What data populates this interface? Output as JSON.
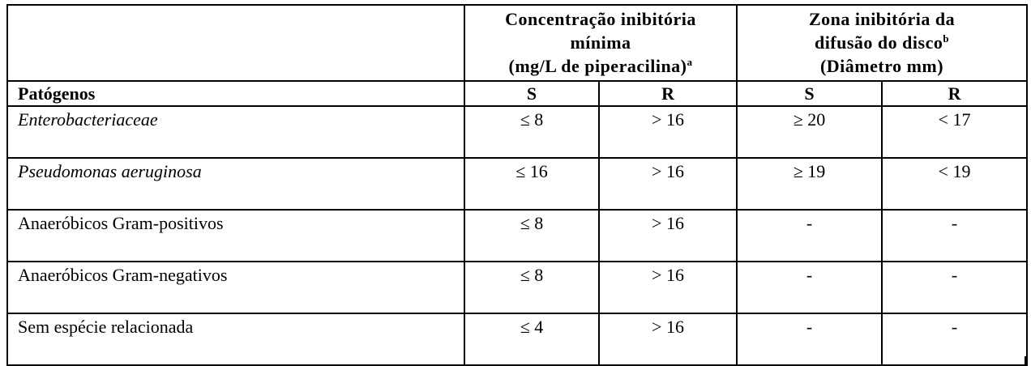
{
  "table": {
    "groups": [
      {
        "lines": [
          {
            "text": "Concentração inibitória"
          },
          {
            "text": "mínima"
          },
          {
            "text": "(mg/L de piperacilina)",
            "sup": "a"
          }
        ]
      },
      {
        "lines": [
          {
            "text": "Zona inibitória da"
          },
          {
            "text": "difusão do disco",
            "sup": "b"
          },
          {
            "text": "(Diâmetro mm)"
          }
        ]
      }
    ],
    "subheader": [
      "Patógenos",
      "S",
      "R",
      "S",
      "R"
    ],
    "rows": [
      {
        "italic": true,
        "cells": [
          "Enterobacteriaceae",
          "≤ 8",
          "> 16",
          "≥ 20",
          "< 17"
        ]
      },
      {
        "italic": true,
        "cells": [
          "Pseudomonas aeruginosa",
          "≤ 16",
          "> 16",
          "≥ 19",
          "< 19"
        ]
      },
      {
        "italic": false,
        "cells": [
          "Anaeróbicos Gram-positivos",
          "≤ 8",
          "> 16",
          "-",
          "-"
        ]
      },
      {
        "italic": false,
        "cells": [
          "Anaeróbicos Gram-negativos",
          "≤ 8",
          "> 16",
          "-",
          "-"
        ]
      },
      {
        "italic": false,
        "cells": [
          "Sem espécie relacionada",
          "≤ 4",
          "> 16",
          "-",
          "-"
        ]
      }
    ]
  }
}
